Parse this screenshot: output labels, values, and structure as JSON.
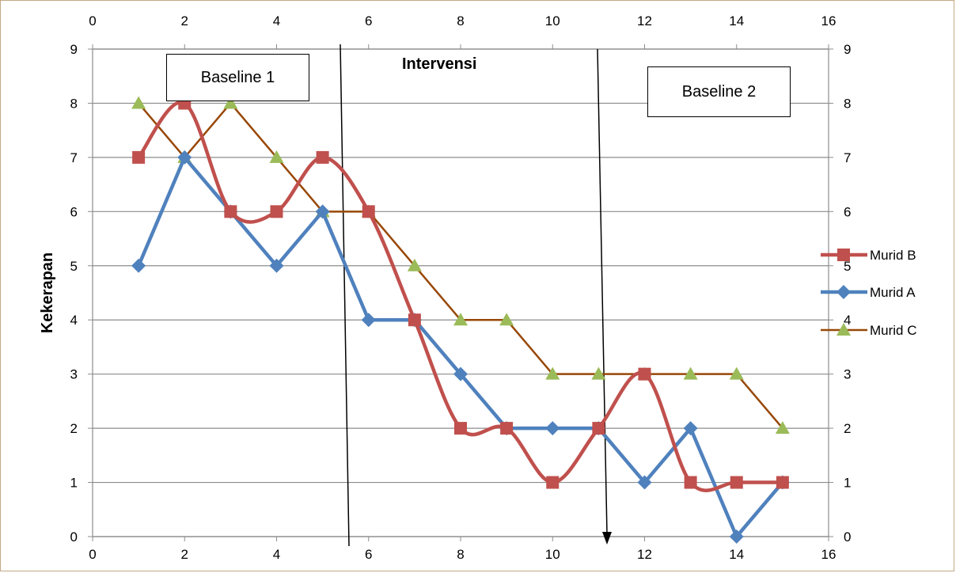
{
  "chart_data": {
    "type": "line",
    "x_ticks": [
      "0",
      "2",
      "4",
      "6",
      "8",
      "10",
      "12",
      "14",
      "16"
    ],
    "y_ticks": [
      "0",
      "1",
      "2",
      "3",
      "4",
      "5",
      "6",
      "7",
      "8",
      "9"
    ],
    "xlim": [
      0,
      16
    ],
    "ylim": [
      0,
      9
    ],
    "ylabel": "Kekerapan",
    "grid": "horizontal",
    "legend_position": "right",
    "x": [
      1,
      2,
      3,
      4,
      5,
      6,
      7,
      8,
      9,
      10,
      11,
      12,
      13,
      14,
      15
    ],
    "series": [
      {
        "name": "Murid B",
        "color": "#c0504d",
        "marker": "square",
        "smooth": true,
        "values": [
          7,
          8,
          6,
          6,
          7,
          6,
          4,
          2,
          2,
          1,
          2,
          3,
          1,
          1,
          1
        ]
      },
      {
        "name": "Murid A",
        "color": "#4f81bd",
        "marker": "diamond",
        "smooth": false,
        "values": [
          5,
          7,
          6,
          5,
          6,
          4,
          4,
          3,
          2,
          2,
          2,
          1,
          2,
          0,
          1
        ]
      },
      {
        "name": "Murid C",
        "color": "#984807",
        "marker_color": "#9bbb59",
        "marker": "triangle",
        "smooth": false,
        "values": [
          8,
          7,
          8,
          7,
          6,
          6,
          5,
          4,
          4,
          3,
          3,
          3,
          3,
          3,
          2
        ]
      }
    ],
    "annotations": {
      "baseline1": "Baseline 1",
      "intervensi": "Intervensi",
      "baseline2": "Baseline 2"
    }
  }
}
